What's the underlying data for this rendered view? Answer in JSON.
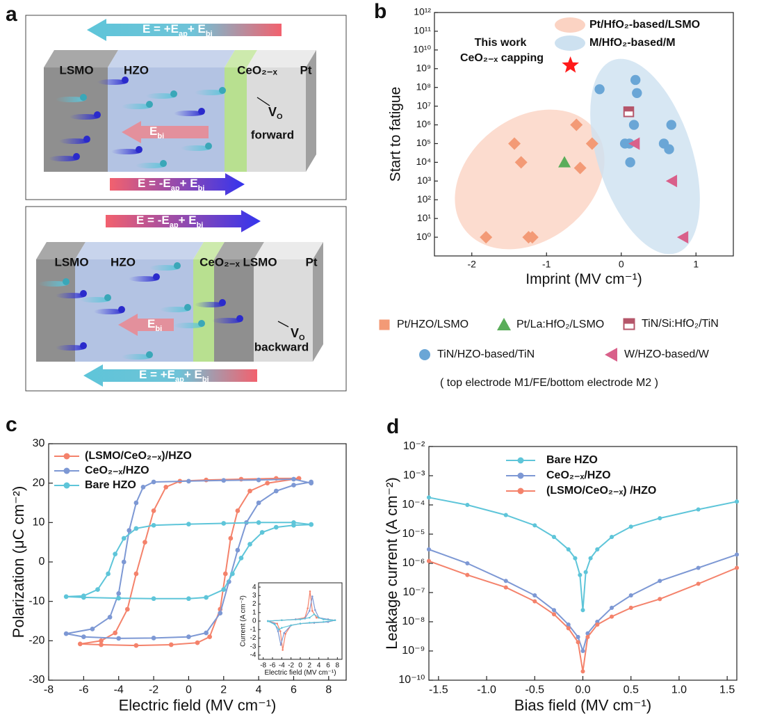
{
  "panel_labels": [
    "a",
    "b",
    "c",
    "d"
  ],
  "diagram": [
    {
      "layers": [
        "LSMO",
        "HZO",
        "CeO₂₋ₓ",
        "Pt"
      ],
      "arrow_top": [
        "E = +E",
        "ap",
        "+ E",
        "bi"
      ],
      "field": [
        "E",
        "bi"
      ],
      "vacancy": [
        "V",
        "O"
      ],
      "vacancy_note": "forward",
      "arrow_bottom": [
        "E = -E",
        "ap",
        "+ E",
        "bi"
      ]
    },
    {
      "layers": [
        "LSMO",
        "HZO",
        "CeO₂₋ₓ",
        "LSMO",
        "Pt"
      ],
      "arrow_top": [
        "E = -E",
        "ap",
        "+ E",
        "bi"
      ],
      "field": [
        "E",
        "bi"
      ],
      "vacancy": [
        "V",
        "O"
      ],
      "vacancy_note": "backward",
      "arrow_bottom": [
        "E = +E",
        "ap",
        "+ E",
        "bi"
      ]
    }
  ],
  "chart_data": [
    {
      "type": "scatter",
      "xlabel": "Imprint (MV cm⁻¹)",
      "ylabel": "Start to fatigue",
      "log_y": true,
      "xlim": [
        -2.5,
        1.5
      ],
      "xticks": [
        -2,
        -1,
        0,
        1
      ],
      "ylim": [
        0.1,
        1000000000000
      ],
      "yticks": [
        {
          "value": 1,
          "label": "10⁰"
        },
        {
          "value": 10,
          "label": "10¹"
        },
        {
          "value": 100,
          "label": "10²"
        },
        {
          "value": 1000,
          "label": "10³"
        },
        {
          "value": 10000,
          "label": "10⁴"
        },
        {
          "value": 100000,
          "label": "10⁵"
        },
        {
          "value": 1000000,
          "label": "10⁶"
        },
        {
          "value": 10000000,
          "label": "10⁷"
        },
        {
          "value": 100000000,
          "label": "10⁸"
        },
        {
          "value": 1000000000,
          "label": "10⁹"
        },
        {
          "value": 10000000000,
          "label": "10¹⁰"
        },
        {
          "value": 100000000000,
          "label": "10¹¹"
        },
        {
          "value": 1000000000000,
          "label": "10¹²"
        }
      ],
      "regions": [
        {
          "name": "Pt/HfO₂-based/LSMO",
          "color": "#fbd3c3"
        },
        {
          "name": "M/HfO₂-based/M",
          "color": "#cde1f0"
        }
      ],
      "highlight": {
        "label": [
          "This work",
          "CeO₂₋ₓ capping"
        ],
        "x": -0.68,
        "value": 1500000000,
        "color": "#ff1a1a"
      },
      "series": [
        {
          "name": "Pt/HZO/LSMO",
          "color": "#f39a76",
          "marker": "diamond",
          "x": [
            -1.81,
            -1.24,
            -1.19,
            -1.43,
            -1.34,
            -0.6,
            -0.55,
            -0.39
          ],
          "values": [
            1,
            1,
            1,
            100000,
            10000,
            1000000,
            5000,
            100000
          ]
        },
        {
          "name": "Pt/La:HfO₂/LSMO",
          "color": "#5aad5a",
          "marker": "triangle",
          "x": [
            -0.76
          ],
          "values": [
            10000
          ]
        },
        {
          "name": "TiN/Si:HfO₂/TiN",
          "color": "#b5566a",
          "marker": "half-square",
          "x": [
            0.1
          ],
          "values": [
            5000000
          ]
        },
        {
          "name": "TiN/HZO-based/TiN",
          "color": "#6aa6d6",
          "marker": "circle",
          "x": [
            -0.29,
            0.19,
            0.21,
            0.17,
            0.05,
            0.11,
            0.12,
            0.57,
            0.64,
            0.67
          ],
          "values": [
            80000000,
            250000000,
            50000000,
            1000000,
            100000,
            100000,
            10000,
            100000,
            50000,
            1000000
          ]
        },
        {
          "name": "W/HZO-based/W",
          "color": "#d9608a",
          "marker": "triangle-left",
          "x": [
            0.18,
            0.68,
            0.83
          ],
          "values": [
            100000,
            1000,
            1
          ]
        }
      ],
      "legend_note": "( top electrode M1/FE/bottom electrode M2 )"
    },
    {
      "type": "line",
      "xlabel": "Electric field (MV cm⁻¹)",
      "ylabel": "Polarization (μC cm⁻²)",
      "xlim": [
        -8,
        9
      ],
      "xticks": [
        -8,
        -6,
        -4,
        -2,
        0,
        2,
        4,
        6,
        8
      ],
      "ylim": [
        -30,
        30
      ],
      "yticks": [
        -30,
        -20,
        -10,
        0,
        10,
        20,
        30
      ],
      "series": [
        {
          "name": "(LSMO/CeO₂₋ₓ)/HZO",
          "color": "#f4826b",
          "x": [
            6.3,
            5,
            3,
            1,
            -0.5,
            -1.3,
            -2,
            -2.5,
            -3,
            -3.5,
            -4.2,
            -5,
            -6.2,
            -5,
            -3,
            -1,
            0.5,
            1.2,
            1.8,
            2.1,
            2.4,
            2.8,
            3.5,
            4.5,
            6.3
          ],
          "values": [
            21.2,
            21.2,
            21,
            20.8,
            20.5,
            19,
            13,
            5,
            -3,
            -12,
            -18,
            -20,
            -20.8,
            -21,
            -21.2,
            -21,
            -20.5,
            -19,
            -12,
            -3,
            6,
            13,
            18,
            20,
            21.2
          ]
        },
        {
          "name": "CeO₂₋ₓ/HZO",
          "color": "#7d98d4",
          "x": [
            7,
            6,
            4,
            2,
            0,
            -2,
            -2.6,
            -3,
            -3.4,
            -3.7,
            -4,
            -4.5,
            -5.5,
            -7,
            -6,
            -4,
            -2,
            0,
            1,
            1.8,
            2.3,
            2.8,
            3.3,
            4,
            5,
            6,
            7
          ],
          "values": [
            20,
            21,
            20.8,
            20.7,
            20.5,
            20.3,
            19,
            15,
            8,
            0,
            -8,
            -14,
            -17,
            -18.2,
            -19,
            -19.4,
            -19.3,
            -19,
            -18,
            -13,
            -5,
            3,
            10,
            15,
            18,
            19.5,
            20.3
          ]
        },
        {
          "name": "Bare HZO",
          "color": "#5ec5d9",
          "x": [
            7,
            6,
            4,
            2,
            0,
            -2,
            -3,
            -3.7,
            -4.2,
            -4.6,
            -5.2,
            -6,
            -7,
            -6,
            -4,
            -2,
            0,
            1,
            2,
            2.5,
            3,
            3.5,
            4.2,
            5,
            6,
            7
          ],
          "values": [
            9.5,
            10,
            10,
            9.8,
            9.6,
            9.3,
            8.5,
            6,
            2,
            -3,
            -7,
            -8.6,
            -8.8,
            -9,
            -9.2,
            -9.3,
            -9.3,
            -9,
            -7,
            -3,
            1,
            4.5,
            7.5,
            8.8,
            9.3,
            9.5
          ]
        }
      ],
      "inset": {
        "type": "line",
        "xlabel": "Electric field (MV cm⁻¹)",
        "ylabel": "Current (A cm⁻²)",
        "xlim": [
          -9,
          9
        ],
        "xticks": [
          -8,
          -6,
          -4,
          -2,
          0,
          2,
          4,
          6,
          8
        ],
        "ylim": [
          -4.5,
          4.5
        ],
        "yticks": [
          -4,
          -3,
          -2,
          -1,
          0,
          1,
          2,
          3,
          4
        ],
        "series": [
          {
            "color": "#f4826b",
            "x": [
              -7,
              -4,
              -1,
              1,
              1.6,
              2.1,
              2.6,
              3.5,
              6,
              7.5,
              6,
              3,
              0,
              -2,
              -3.2,
              -3.8,
              -4.3,
              -5,
              -7
            ],
            "values": [
              0,
              0.1,
              0.2,
              0.4,
              1.5,
              3.5,
              1.2,
              0.4,
              0.2,
              0.1,
              -0.1,
              -0.2,
              -0.3,
              -0.5,
              -1.5,
              -3.4,
              -1.2,
              -0.3,
              0
            ]
          },
          {
            "color": "#7d98d4",
            "x": [
              -7,
              -4,
              -1,
              1,
              2,
              2.6,
              3.2,
              4,
              6,
              7.5,
              6,
              3,
              0,
              -2,
              -3.5,
              -4.2,
              -4.8,
              -5.5,
              -7
            ],
            "values": [
              0,
              0.1,
              0.2,
              0.3,
              1.2,
              2.9,
              1.3,
              0.4,
              0.2,
              0.1,
              -0.1,
              -0.2,
              -0.3,
              -0.5,
              -1.4,
              -2.8,
              -1.2,
              -0.3,
              0
            ]
          },
          {
            "color": "#5ec5d9",
            "x": [
              -7,
              -4,
              0,
              2,
              3,
              4,
              5,
              7.5,
              5,
              2,
              0,
              -2,
              -4,
              -4.6,
              -5.5,
              -7
            ],
            "values": [
              0,
              0.1,
              0.2,
              0.4,
              0.8,
              0.4,
              0.2,
              0.1,
              -0.1,
              -0.2,
              -0.3,
              -0.5,
              -0.8,
              -1,
              -0.4,
              0
            ]
          }
        ]
      }
    },
    {
      "type": "line",
      "xlabel": "Bias field (MV cm⁻¹)",
      "ylabel": "Leakage current (A cm⁻²)",
      "log_y": true,
      "xlim": [
        -1.6,
        1.6
      ],
      "xticks": [
        -1.5,
        {
          "value": -1,
          "label": "-1.0"
        },
        -0.5,
        {
          "value": 0,
          "label": "0.0"
        },
        0.5,
        {
          "value": 1,
          "label": "1.0"
        },
        1.5
      ],
      "ylim": [
        1e-10,
        0.01
      ],
      "yticks": [
        {
          "value": 1e-10,
          "label": "10⁻¹⁰"
        },
        {
          "value": 1e-09,
          "label": "10⁻⁹"
        },
        {
          "value": 1e-08,
          "label": "10⁻⁸"
        },
        {
          "value": 1e-07,
          "label": "10⁻⁷"
        },
        {
          "value": 1e-06,
          "label": "10⁻⁶"
        },
        {
          "value": 1e-05,
          "label": "10⁻⁵"
        },
        {
          "value": 0.0001,
          "label": "10⁻⁴"
        },
        {
          "value": 0.001,
          "label": "10⁻³"
        },
        {
          "value": 0.01,
          "label": "10⁻²"
        }
      ],
      "series": [
        {
          "name": "Bare HZO",
          "color": "#5ec5d9",
          "x": [
            -1.6,
            -1.2,
            -0.8,
            -0.5,
            -0.3,
            -0.15,
            -0.08,
            -0.03,
            0,
            0.03,
            0.08,
            0.15,
            0.3,
            0.5,
            0.8,
            1.2,
            1.6
          ],
          "values": [
            0.00018,
            0.0001,
            4.5e-05,
            2e-05,
            8e-06,
            3e-06,
            1.5e-06,
            4e-07,
            2.5e-08,
            5e-07,
            1.5e-06,
            3e-06,
            8e-06,
            1.8e-05,
            3.5e-05,
            7e-05,
            0.00013
          ]
        },
        {
          "name": "CeO₂₋ₓ/HZO",
          "color": "#7d98d4",
          "x": [
            -1.6,
            -1.2,
            -0.8,
            -0.5,
            -0.3,
            -0.15,
            -0.05,
            0,
            0.05,
            0.15,
            0.3,
            0.5,
            0.8,
            1.2,
            1.6
          ],
          "values": [
            3e-06,
            1e-06,
            2.5e-07,
            8e-08,
            2.5e-08,
            8e-09,
            3e-09,
            1e-09,
            4e-09,
            1e-08,
            3e-08,
            8e-08,
            2.5e-07,
            7e-07,
            2e-06
          ]
        },
        {
          "name": "(LSMO/CeO₂₋ₓ) /HZO",
          "color": "#f4826b",
          "x": [
            -1.6,
            -1.2,
            -0.8,
            -0.5,
            -0.3,
            -0.15,
            -0.05,
            0,
            0.05,
            0.15,
            0.3,
            0.5,
            0.8,
            1.2,
            1.6
          ],
          "values": [
            1.2e-06,
            4e-07,
            1.5e-07,
            5e-08,
            1.8e-08,
            6e-09,
            2e-09,
            2e-10,
            3e-09,
            8e-09,
            1.5e-08,
            3e-08,
            6e-08,
            2e-07,
            7e-07
          ]
        }
      ]
    }
  ]
}
